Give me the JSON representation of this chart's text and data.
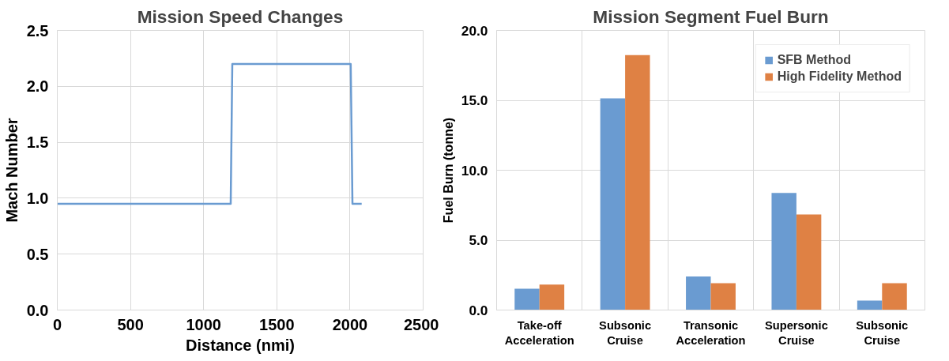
{
  "chart_data": [
    {
      "type": "line",
      "title": "Mission Speed Changes",
      "xlabel": "Distance (nmi)",
      "ylabel": "Mach Number",
      "x": [
        0,
        1185,
        1196,
        2005,
        2017,
        2080
      ],
      "series": [
        {
          "color": "#6a9bd1",
          "values": [
            0.95,
            0.95,
            2.2,
            2.2,
            0.95,
            0.95
          ]
        }
      ],
      "xlim": [
        0,
        2500
      ],
      "xticks": [
        0,
        500,
        1000,
        1500,
        2000,
        2500
      ],
      "ylim": [
        0,
        2.5
      ],
      "yticks": [
        {
          "value": 0,
          "label": "0.0"
        },
        {
          "value": 0.5,
          "label": "0.5"
        },
        {
          "value": 1,
          "label": "1.0"
        },
        {
          "value": 1.5,
          "label": "1.5"
        },
        {
          "value": 2,
          "label": "2.0"
        },
        {
          "value": 2.5,
          "label": "2.5"
        }
      ],
      "grid": true,
      "legend": false,
      "marker": "none",
      "line_style": "solid"
    },
    {
      "type": "bar",
      "title": "Mission Segment Fuel Burn",
      "ylabel": "Fuel Burn (tonne)",
      "categories": [
        "Take-off\nAcceleration",
        "Subsonic\nCruise",
        "Transonic\nAcceleration",
        "Supersonic\nCruise",
        "Subsonic\nCruise"
      ],
      "series": [
        {
          "name": "SFB Method",
          "color": "#6a9bd1",
          "values": [
            1.53,
            15.14,
            2.4,
            8.38,
            0.68
          ]
        },
        {
          "name": "High Fidelity Method",
          "color": "#df8144",
          "values": [
            1.82,
            18.23,
            1.92,
            6.83,
            1.92
          ]
        }
      ],
      "ylim": [
        0,
        20
      ],
      "yticks": [
        {
          "value": 0,
          "label": "0.0"
        },
        {
          "value": 5,
          "label": "5.0"
        },
        {
          "value": 10,
          "label": "10.0"
        },
        {
          "value": 15,
          "label": "15.0"
        },
        {
          "value": 20,
          "label": "20.0"
        }
      ],
      "grid": true,
      "legend": "top right"
    }
  ]
}
